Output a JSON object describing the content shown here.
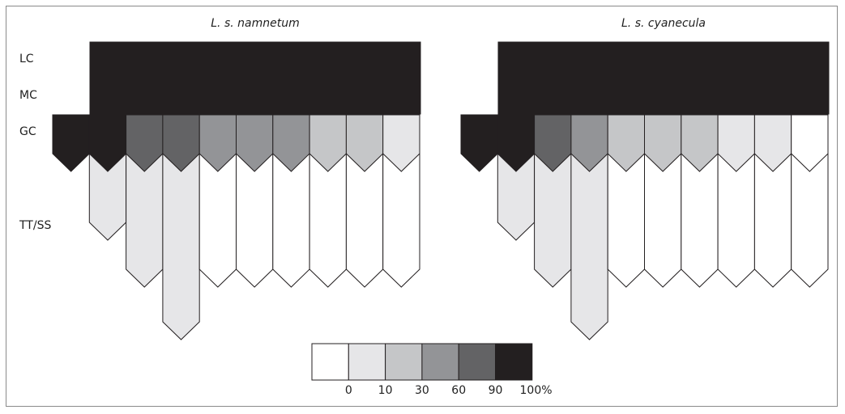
{
  "panels": [
    {
      "title": "L. s. namnetum",
      "gc_levels": [
        100,
        100,
        90,
        90,
        60,
        60,
        60,
        30,
        30,
        10
      ],
      "tt_levels": [
        null,
        10,
        10,
        10,
        0,
        0,
        0,
        0,
        0,
        0
      ],
      "tt_depth": [
        null,
        1,
        2,
        3,
        2,
        2,
        2,
        2,
        2,
        2
      ]
    },
    {
      "title": "L. s. cyanecula",
      "gc_levels": [
        100,
        100,
        90,
        60,
        30,
        30,
        30,
        10,
        10,
        0
      ],
      "tt_levels": [
        null,
        10,
        10,
        10,
        0,
        0,
        0,
        0,
        0,
        0
      ],
      "tt_depth": [
        null,
        1,
        2,
        3,
        2,
        2,
        2,
        2,
        2,
        2
      ]
    }
  ],
  "row_labels": {
    "lc": "LC",
    "mc": "MC",
    "gc": "GC",
    "tt": "TT/SS"
  },
  "legend": {
    "levels": [
      0,
      10,
      30,
      60,
      90,
      100
    ],
    "labels": [
      "0",
      "10",
      "30",
      "60",
      "90",
      "100%"
    ],
    "colors": [
      "#ffffff",
      "#e6e6e8",
      "#c5c6c8",
      "#939497",
      "#636365",
      "#231f20"
    ]
  },
  "colors": {
    "dark": "#231f20",
    "stroke": "#231f20",
    "frame": "#8a8a8a"
  }
}
